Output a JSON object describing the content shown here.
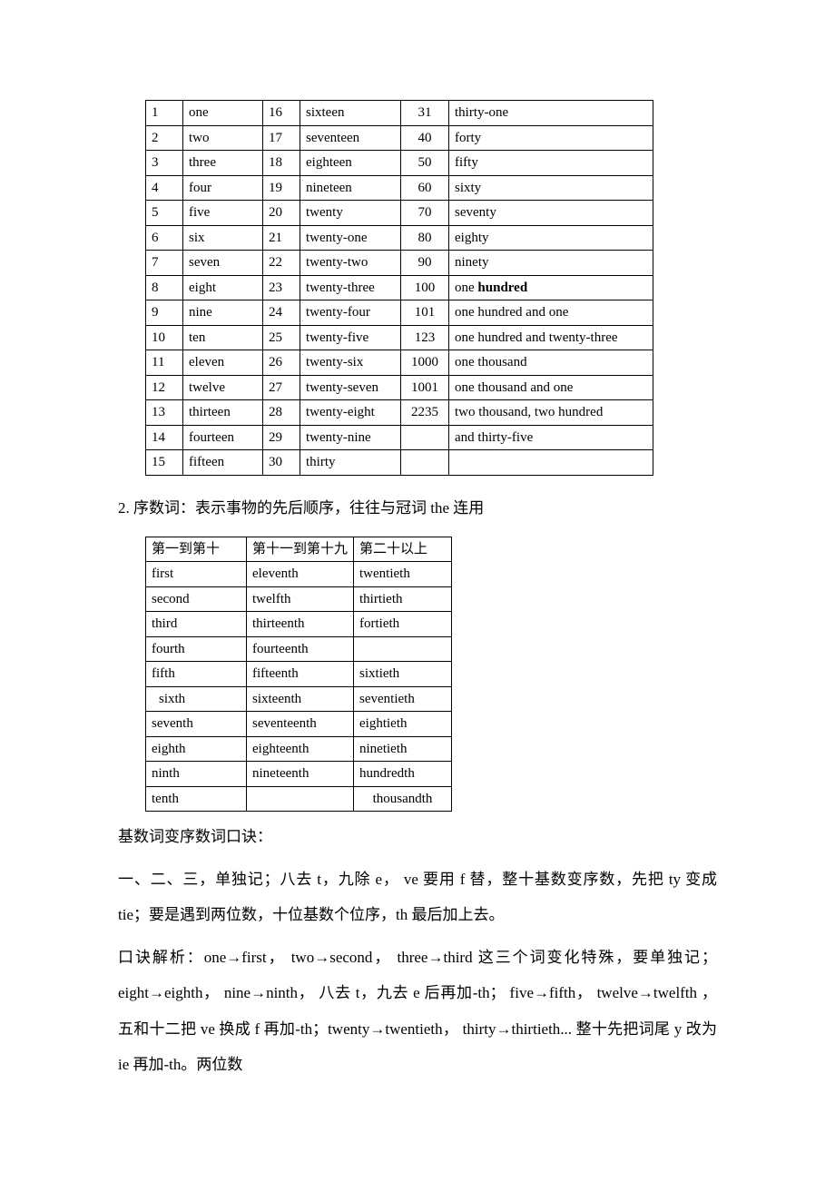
{
  "cardinal_table": {
    "rows": [
      [
        "1",
        "one",
        "16",
        "sixteen",
        "31",
        "thirty-one"
      ],
      [
        "2",
        "two",
        "17",
        "seventeen",
        "40",
        "forty"
      ],
      [
        "3",
        "three",
        "18",
        "eighteen",
        "50",
        "fifty"
      ],
      [
        "4",
        "four",
        "19",
        "nineteen",
        "60",
        "sixty"
      ],
      [
        "5",
        "five",
        "20",
        "twenty",
        "70",
        "seventy"
      ],
      [
        "6",
        "six",
        "21",
        "twenty-one",
        "80",
        "eighty"
      ],
      [
        "7",
        "seven",
        "22",
        "twenty-two",
        "90",
        "ninety"
      ],
      [
        "8",
        "eight",
        "23",
        "twenty-three",
        "100",
        "one  hundred"
      ],
      [
        "9",
        "nine",
        "24",
        "twenty-four",
        "101",
        "one hundred and one"
      ],
      [
        "10",
        "ten",
        "25",
        "twenty-five",
        "123",
        "one hundred and twenty-three"
      ],
      [
        "11",
        "eleven",
        "26",
        "twenty-six",
        "1000",
        "one thousand"
      ],
      [
        "12",
        "twelve",
        "27",
        "twenty-seven",
        "1001",
        "one thousand and one"
      ],
      [
        "13",
        "thirteen",
        "28",
        "twenty-eight",
        "2235",
        "two thousand, two hundred"
      ],
      [
        "14",
        "fourteen",
        "29",
        "twenty-nine",
        "",
        "and thirty-five"
      ],
      [
        "15",
        "fifteen",
        "30",
        "thirty",
        "",
        ""
      ]
    ],
    "bold_cell": {
      "row": 7,
      "col": 5,
      "text_bold_part": "hundred"
    }
  },
  "heading_ordinal": "2.  序数词：表示事物的先后顺序，往往与冠词 the 连用",
  "ordinal_table": {
    "header": [
      "第一到第十",
      "第十一到第十九",
      "第二十以上"
    ],
    "rows": [
      [
        "first",
        "eleventh",
        "twentieth"
      ],
      [
        "second",
        "twelfth",
        "thirtieth"
      ],
      [
        "third",
        "thirteenth",
        "fortieth"
      ],
      [
        "fourth",
        "fourteenth",
        ""
      ],
      [
        "fifth",
        "fifteenth",
        "sixtieth"
      ],
      [
        "sixth",
        "sixteenth",
        "seventieth"
      ],
      [
        "seventh",
        "seventeenth",
        "eightieth"
      ],
      [
        "eighth",
        "eighteenth",
        "ninetieth"
      ],
      [
        "ninth",
        "nineteenth",
        "hundredth"
      ]
    ],
    "last_row": [
      "tenth",
      "thousandth"
    ],
    "indent_row": 5
  },
  "mnemonic_title": "基数词变序数词口诀：",
  "mnemonic_body": "一、二、三，单独记；八去 t，九除 e， ve 要用 f 替，整十基数变序数，先把 ty 变成 tie；要是遇到两位数，十位基数个位序，th 最后加上去。",
  "explain_body": "口诀解析：one→first， two→second， three→third 这三个词变化特殊，要单独记；eight→eighth， nine→ninth， 八去 t，九去 e 后再加-th； five→fifth， twelve→twelfth ，五和十二把 ve 换成 f 再加-th；twenty→twentieth， thirty→thirtieth... 整十先把词尾 y 改为 ie 再加-th。两位数"
}
